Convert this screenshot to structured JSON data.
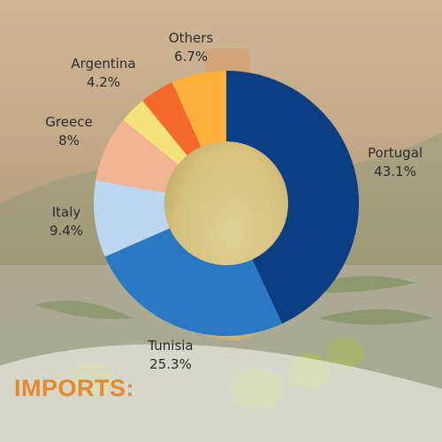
{
  "heading": "IMPORTS:",
  "colors": {
    "heading": "#e88a2a",
    "label_text": "#2b2b2b",
    "slices": [
      "#0b3e82",
      "#2a78c4",
      "#bcd6f2",
      "#f3b494",
      "#f6e27a",
      "#f46a2a",
      "#fbb13c"
    ]
  },
  "chart_data": {
    "type": "pie",
    "variant": "donut",
    "start_angle_deg": 0,
    "direction": "clockwise",
    "legend": "none",
    "categories": [
      "Portugal",
      "Tunisia",
      "Italy",
      "Greece",
      "",
      "Argentina",
      "Others"
    ],
    "values": [
      43.1,
      25.3,
      9.4,
      8,
      null,
      4.2,
      6.7
    ],
    "data_labels": [
      {
        "name": "Portugal",
        "value": "43.1%"
      },
      {
        "name": "Tunisia",
        "value": "25.3%"
      },
      {
        "name": "Italy",
        "value": "9.4%"
      },
      {
        "name": "Greece",
        "value": "8%"
      },
      {
        "name": "Argentina",
        "value": "4.2%"
      },
      {
        "name": "Others",
        "value": "6.7%"
      }
    ]
  }
}
